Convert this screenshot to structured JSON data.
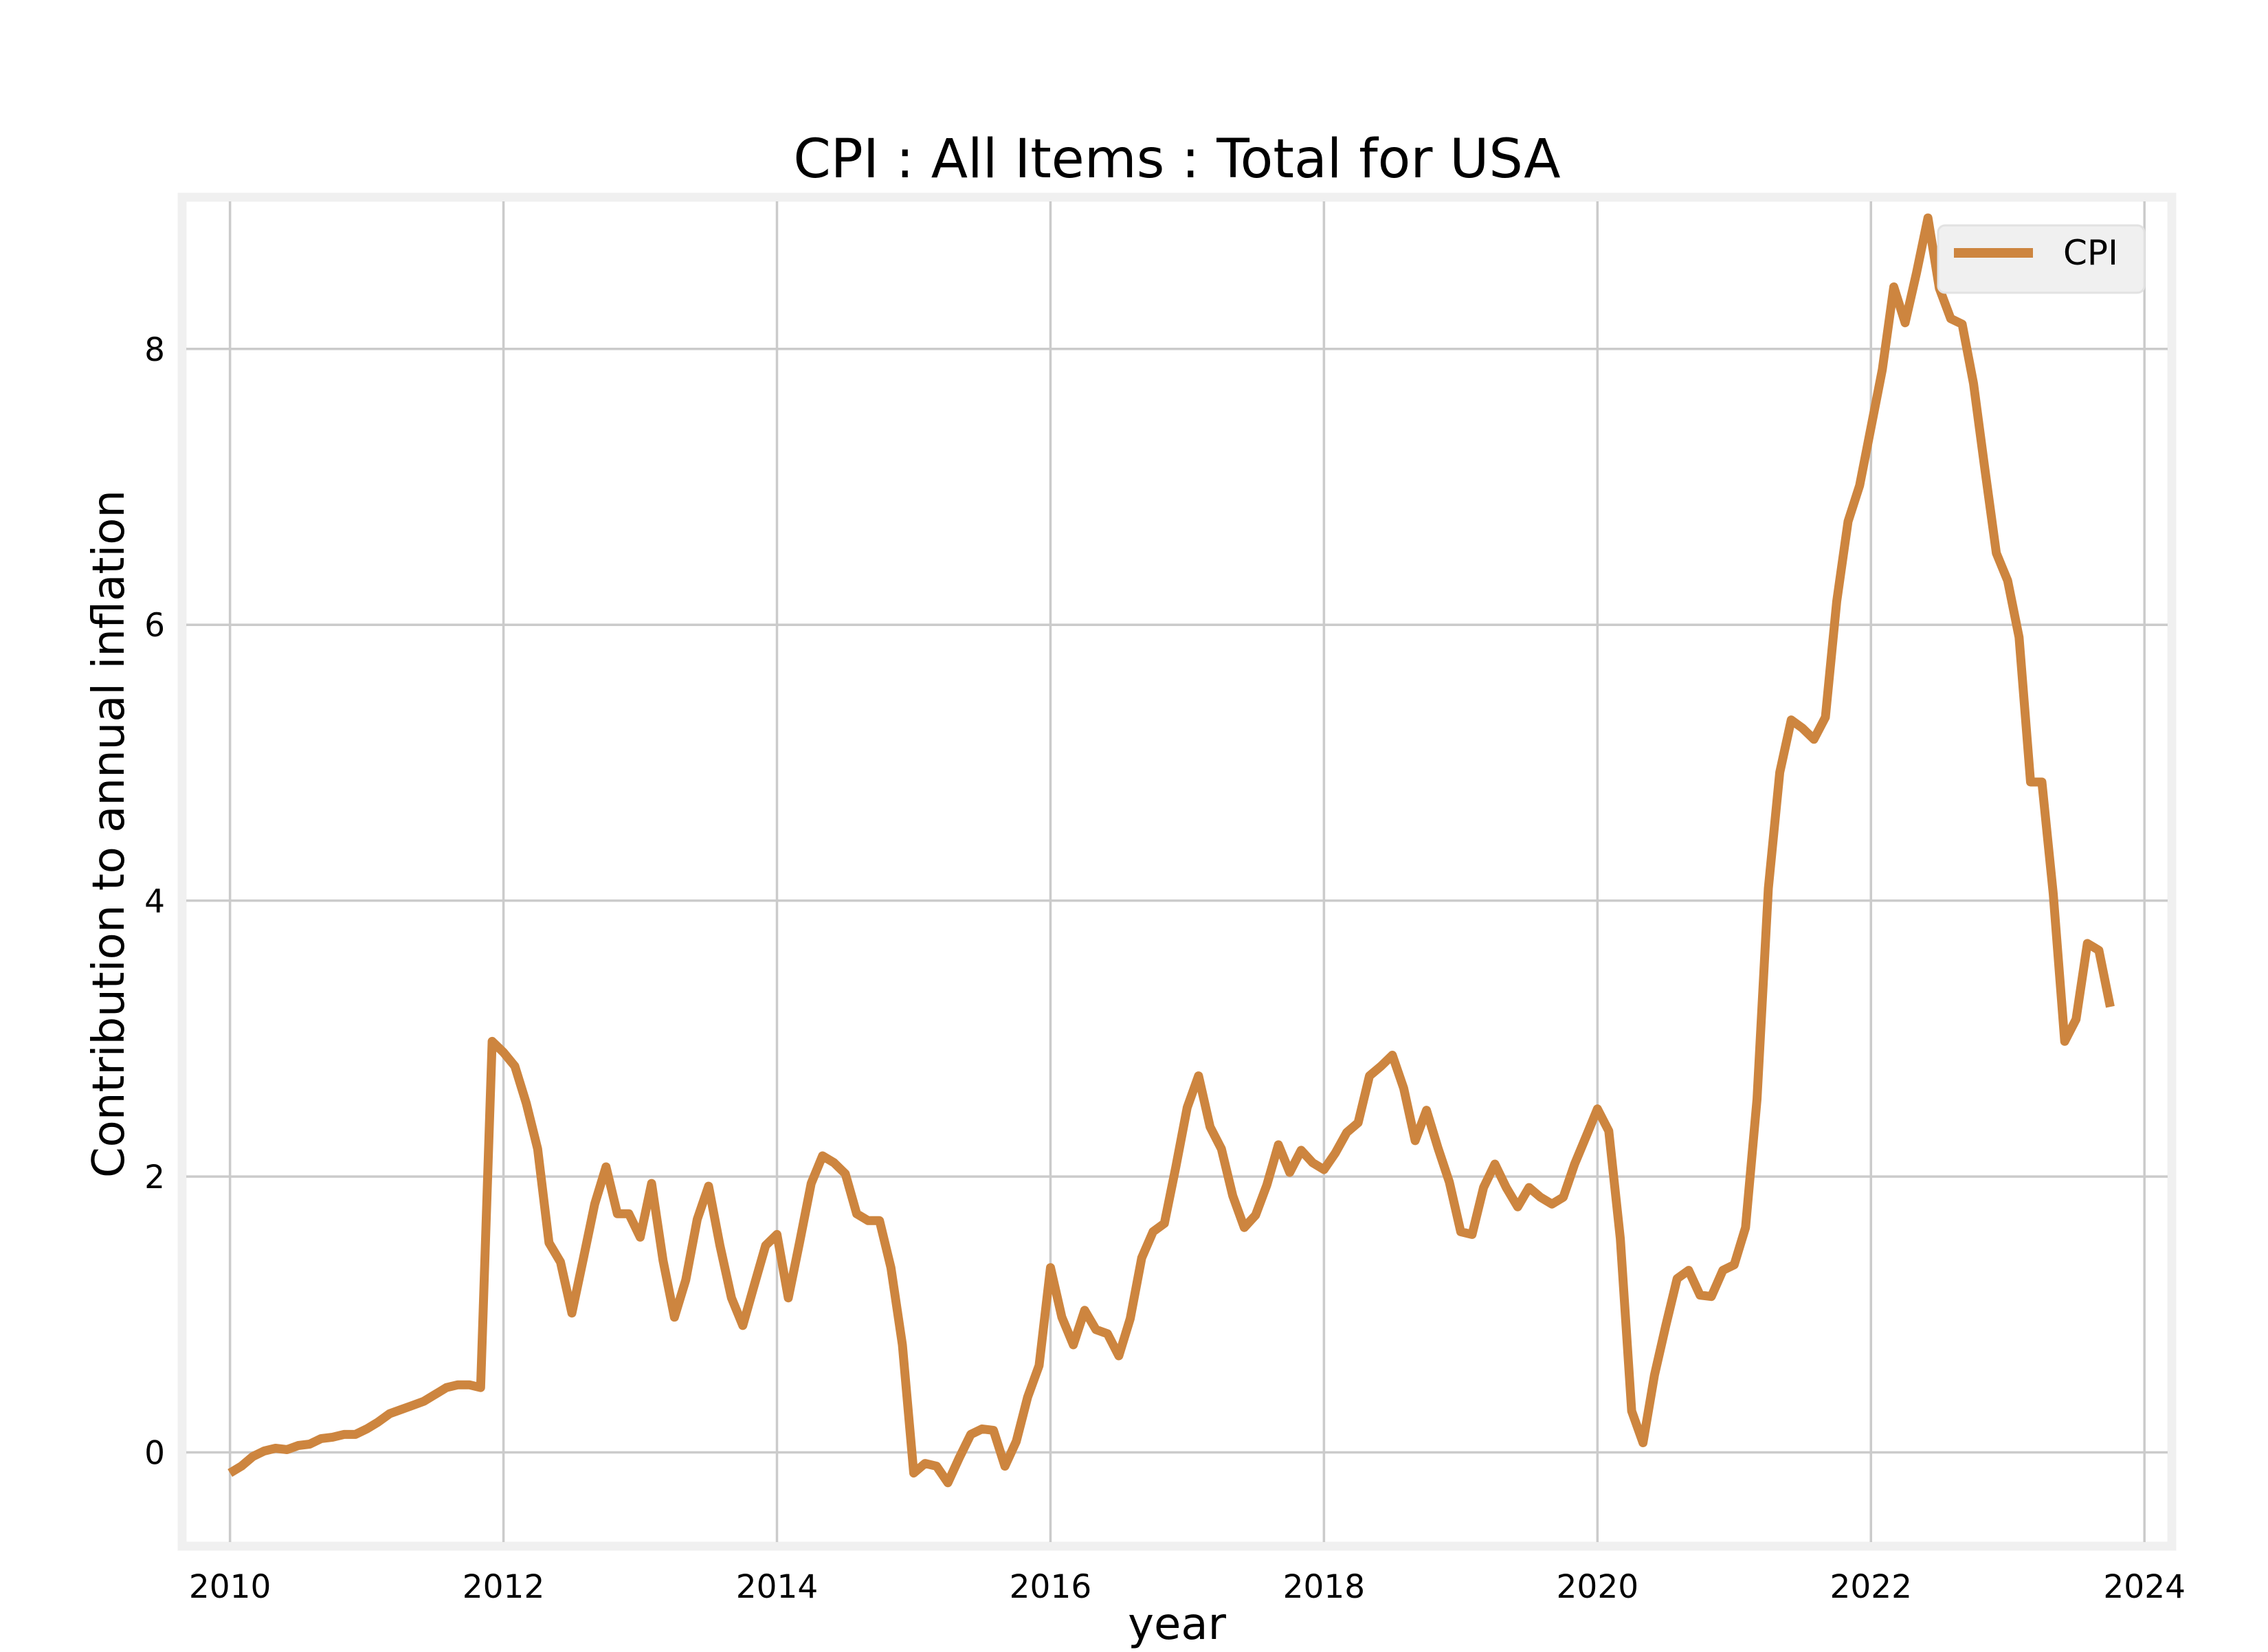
{
  "chart_data": {
    "type": "line",
    "title": "CPI : All Items : Total for USA",
    "xlabel": "year",
    "ylabel": "Contribution to annual inflation",
    "xlim": [
      2009.65,
      2024.2
    ],
    "ylim": [
      -0.68,
      9.1
    ],
    "x_ticks": [
      2010,
      2012,
      2014,
      2016,
      2018,
      2020,
      2022,
      2024
    ],
    "y_ticks": [
      0,
      2,
      4,
      6,
      8
    ],
    "grid": true,
    "legend_position": "top-right",
    "colors": {
      "line": "#cd853f",
      "grid": "#cbcbcb",
      "frame": "#f0f0f0",
      "legend_bg": "#f0f0f0"
    },
    "series": [
      {
        "name": "CPI",
        "x": [
          2010.0,
          2010.083,
          2010.167,
          2010.25,
          2010.333,
          2010.417,
          2010.5,
          2010.583,
          2010.667,
          2010.75,
          2010.833,
          2010.917,
          2011.0,
          2011.083,
          2011.167,
          2011.25,
          2011.333,
          2011.417,
          2011.5,
          2011.583,
          2011.667,
          2011.75,
          2011.833,
          2011.917,
          2012.0,
          2012.083,
          2012.167,
          2012.25,
          2012.333,
          2012.417,
          2012.5,
          2012.583,
          2012.667,
          2012.75,
          2012.833,
          2012.917,
          2013.0,
          2013.083,
          2013.167,
          2013.25,
          2013.333,
          2013.417,
          2013.5,
          2013.583,
          2013.667,
          2013.75,
          2013.833,
          2013.917,
          2014.0,
          2014.083,
          2014.167,
          2014.25,
          2014.333,
          2014.417,
          2014.5,
          2014.583,
          2014.667,
          2014.75,
          2014.833,
          2014.917,
          2015.0,
          2015.083,
          2015.167,
          2015.25,
          2015.333,
          2015.417,
          2015.5,
          2015.583,
          2015.667,
          2015.75,
          2015.833,
          2015.917,
          2016.0,
          2016.083,
          2016.167,
          2016.25,
          2016.333,
          2016.417,
          2016.5,
          2016.583,
          2016.667,
          2016.75,
          2016.833,
          2016.917,
          2017.0,
          2017.083,
          2017.167,
          2017.25,
          2017.333,
          2017.417,
          2017.5,
          2017.583,
          2017.667,
          2017.75,
          2017.833,
          2017.917,
          2018.0,
          2018.083,
          2018.167,
          2018.25,
          2018.333,
          2018.417,
          2018.5,
          2018.583,
          2018.667,
          2018.75,
          2018.833,
          2018.917,
          2019.0,
          2019.083,
          2019.167,
          2019.25,
          2019.333,
          2019.417,
          2019.5,
          2019.583,
          2019.667,
          2019.75,
          2019.833,
          2019.917,
          2020.0,
          2020.083,
          2020.167,
          2020.25,
          2020.333,
          2020.417,
          2020.5,
          2020.583,
          2020.667,
          2020.75,
          2020.833,
          2020.917,
          2021.0,
          2021.083,
          2021.167,
          2021.25,
          2021.333,
          2021.417,
          2021.5,
          2021.583,
          2021.667,
          2021.75,
          2021.833,
          2021.917,
          2022.0,
          2022.083,
          2022.167,
          2022.25,
          2022.333,
          2022.417,
          2022.5,
          2022.583,
          2022.667,
          2022.75,
          2022.833,
          2022.917,
          2023.0,
          2023.083,
          2023.167,
          2023.25,
          2023.333,
          2023.417,
          2023.5,
          2023.583,
          2023.667,
          2023.75
        ],
        "values": [
          -0.15,
          -0.1,
          -0.03,
          0.01,
          0.03,
          0.02,
          0.05,
          0.06,
          0.1,
          0.11,
          0.13,
          0.13,
          0.17,
          0.22,
          0.28,
          0.31,
          0.34,
          0.37,
          0.42,
          0.47,
          0.49,
          0.49,
          0.47,
          2.98,
          2.9,
          2.8,
          2.53,
          2.2,
          1.52,
          1.38,
          1.01,
          1.4,
          1.8,
          2.07,
          1.73,
          1.73,
          1.56,
          1.95,
          1.39,
          0.98,
          1.25,
          1.69,
          1.93,
          1.5,
          1.12,
          0.92,
          1.21,
          1.5,
          1.58,
          1.12,
          1.53,
          1.95,
          2.15,
          2.1,
          2.02,
          1.73,
          1.68,
          1.68,
          1.34,
          0.78,
          -0.15,
          -0.08,
          -0.1,
          -0.22,
          -0.04,
          0.13,
          0.17,
          0.16,
          -0.1,
          0.08,
          0.4,
          0.63,
          1.34,
          0.98,
          0.78,
          1.03,
          0.89,
          0.86,
          0.7,
          0.97,
          1.41,
          1.6,
          1.66,
          2.07,
          2.5,
          2.73,
          2.36,
          2.2,
          1.86,
          1.63,
          1.72,
          1.94,
          2.23,
          2.03,
          2.19,
          2.1,
          2.05,
          2.17,
          2.32,
          2.39,
          2.73,
          2.8,
          2.88,
          2.64,
          2.26,
          2.48,
          2.21,
          1.96,
          1.6,
          1.58,
          1.92,
          2.09,
          1.92,
          1.78,
          1.92,
          1.85,
          1.8,
          1.85,
          2.09,
          2.29,
          2.49,
          2.33,
          1.55,
          0.3,
          0.07,
          0.56,
          0.92,
          1.26,
          1.32,
          1.14,
          1.13,
          1.32,
          1.36,
          1.63,
          2.56,
          4.09,
          4.93,
          5.31,
          5.25,
          5.17,
          5.33,
          6.17,
          6.75,
          7.01,
          7.43,
          7.85,
          8.45,
          8.19,
          8.55,
          8.95,
          8.44,
          8.22,
          8.18,
          7.75,
          7.13,
          6.52,
          6.32,
          5.91,
          4.86,
          4.86,
          4.05,
          2.98,
          3.14,
          3.69,
          3.64,
          3.23
        ]
      }
    ]
  }
}
